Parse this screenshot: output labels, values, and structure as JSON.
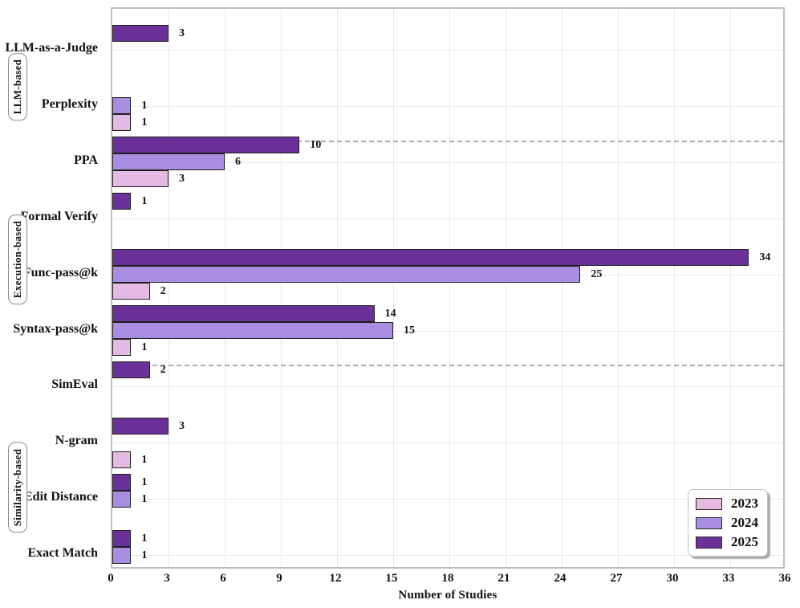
{
  "chart_data": {
    "type": "bar",
    "orientation": "horizontal",
    "xlabel": "Number of Studies",
    "xlim": [
      0,
      36
    ],
    "xticks": [
      0,
      3,
      6,
      9,
      12,
      15,
      18,
      21,
      24,
      27,
      30,
      33,
      36
    ],
    "grid": true,
    "categories": [
      "LLM-as-a-Judge",
      "Perplexity",
      "PPA",
      "Formal Verify",
      "Func-pass@k",
      "Syntax-pass@k",
      "SimEval",
      "N-gram",
      "Edit Distance",
      "Exact Match"
    ],
    "groups": [
      {
        "label": "LLM-based",
        "categories": [
          "LLM-as-a-Judge",
          "Perplexity"
        ]
      },
      {
        "label": "Execution-based",
        "categories": [
          "PPA",
          "Formal Verify",
          "Func-pass@k",
          "Syntax-pass@k"
        ]
      },
      {
        "label": "Similarity-based",
        "categories": [
          "SimEval",
          "N-gram",
          "Edit Distance",
          "Exact Match"
        ]
      }
    ],
    "separators_after_categories": [
      "Perplexity",
      "Syntax-pass@k"
    ],
    "series_order_top_to_bottom": [
      "2025",
      "2024",
      "2023"
    ],
    "series": [
      {
        "name": "2023",
        "color": "#E4B9E2",
        "values": [
          null,
          1,
          3,
          null,
          2,
          1,
          null,
          1,
          null,
          null
        ]
      },
      {
        "name": "2024",
        "color": "#A98DE0",
        "values": [
          null,
          1,
          6,
          null,
          25,
          15,
          null,
          null,
          1,
          1
        ]
      },
      {
        "name": "2025",
        "color": "#6C3199",
        "values": [
          3,
          null,
          10,
          1,
          34,
          14,
          2,
          3,
          1,
          1
        ]
      }
    ],
    "legend": {
      "position": "lower right",
      "entries": [
        "2023",
        "2024",
        "2025"
      ]
    }
  },
  "colors": {
    "grid": "#e9e9ee",
    "frame": "#bfbfbf",
    "separator": "#ababab",
    "bar_edge": "#1f1f1f",
    "text": "#111111"
  }
}
